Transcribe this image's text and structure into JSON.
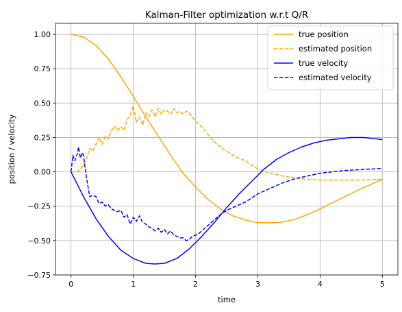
{
  "chart_data": {
    "type": "line",
    "title": "Kalman-Filter optimization w.r.t Q/R",
    "xlabel": "time",
    "ylabel": "position / velocity",
    "xlim": [
      -0.25,
      5.25
    ],
    "ylim": [
      -0.75,
      1.08
    ],
    "xticks": [
      0,
      1,
      2,
      3,
      4,
      5
    ],
    "yticks": [
      -0.75,
      -0.5,
      -0.25,
      0.0,
      0.25,
      0.5,
      0.75,
      1.0
    ],
    "xtick_labels": [
      "0",
      "1",
      "2",
      "3",
      "4",
      "5"
    ],
    "ytick_labels": [
      "−0.75",
      "−0.50",
      "−0.25",
      "0.00",
      "0.25",
      "0.50",
      "0.75",
      "1.00"
    ],
    "grid": true,
    "legend_position": "top-right",
    "series": [
      {
        "name": "true position",
        "color": "#ffa500",
        "dash": "solid",
        "x": [
          0,
          0.2,
          0.4,
          0.6,
          0.8,
          1.0,
          1.2,
          1.4,
          1.6,
          1.8,
          2.0,
          2.2,
          2.4,
          2.6,
          2.8,
          3.0,
          3.2,
          3.3,
          3.4,
          3.6,
          3.8,
          4.0,
          4.2,
          4.4,
          4.6,
          4.8,
          5.0
        ],
        "y": [
          1.0,
          0.98,
          0.92,
          0.82,
          0.69,
          0.55,
          0.4,
          0.26,
          0.12,
          -0.01,
          -0.11,
          -0.2,
          -0.27,
          -0.32,
          -0.35,
          -0.37,
          -0.37,
          -0.37,
          -0.365,
          -0.345,
          -0.31,
          -0.27,
          -0.225,
          -0.18,
          -0.135,
          -0.095,
          -0.055
        ]
      },
      {
        "name": "estimated position",
        "color": "#ffa500",
        "dash": "dashed",
        "x": [
          0,
          0.1,
          0.15,
          0.2,
          0.25,
          0.3,
          0.35,
          0.4,
          0.45,
          0.5,
          0.55,
          0.6,
          0.65,
          0.7,
          0.75,
          0.8,
          0.85,
          0.9,
          0.95,
          1.0,
          1.05,
          1.1,
          1.15,
          1.2,
          1.25,
          1.3,
          1.35,
          1.4,
          1.45,
          1.5,
          1.55,
          1.6,
          1.65,
          1.7,
          1.75,
          1.8,
          1.85,
          1.9,
          1.95,
          2.0,
          2.1,
          2.2,
          2.3,
          2.4,
          2.5,
          2.6,
          2.7,
          2.8,
          2.9,
          3.0,
          3.2,
          3.4,
          3.6,
          3.8,
          4.0,
          4.2,
          4.4,
          4.6,
          4.8,
          5.0
        ],
        "y": [
          0.0,
          0.0,
          0.02,
          0.05,
          0.1,
          0.17,
          0.15,
          0.2,
          0.25,
          0.2,
          0.26,
          0.24,
          0.3,
          0.33,
          0.3,
          0.33,
          0.3,
          0.38,
          0.41,
          0.48,
          0.36,
          0.4,
          0.34,
          0.43,
          0.4,
          0.45,
          0.4,
          0.46,
          0.42,
          0.45,
          0.44,
          0.42,
          0.46,
          0.43,
          0.44,
          0.42,
          0.44,
          0.43,
          0.4,
          0.37,
          0.33,
          0.27,
          0.22,
          0.18,
          0.15,
          0.12,
          0.1,
          0.08,
          0.05,
          0.02,
          -0.01,
          -0.03,
          -0.045,
          -0.055,
          -0.06,
          -0.06,
          -0.06,
          -0.06,
          -0.058,
          -0.055
        ]
      },
      {
        "name": "true velocity",
        "color": "#0000ff",
        "dash": "solid",
        "x": [
          0,
          0.2,
          0.4,
          0.6,
          0.8,
          1.0,
          1.2,
          1.35,
          1.5,
          1.7,
          1.9,
          2.1,
          2.3,
          2.5,
          2.7,
          2.9,
          3.1,
          3.3,
          3.5,
          3.7,
          3.9,
          4.1,
          4.3,
          4.5,
          4.6,
          4.7,
          4.9,
          5.0
        ],
        "y": [
          0.0,
          -0.18,
          -0.34,
          -0.47,
          -0.57,
          -0.63,
          -0.665,
          -0.67,
          -0.665,
          -0.63,
          -0.56,
          -0.47,
          -0.37,
          -0.26,
          -0.16,
          -0.07,
          0.02,
          0.09,
          0.14,
          0.18,
          0.21,
          0.23,
          0.24,
          0.25,
          0.25,
          0.25,
          0.24,
          0.235
        ]
      },
      {
        "name": "estimated velocity",
        "color": "#0000ff",
        "dash": "dashed",
        "x": [
          0,
          0.03,
          0.06,
          0.1,
          0.12,
          0.15,
          0.18,
          0.2,
          0.22,
          0.25,
          0.3,
          0.35,
          0.4,
          0.45,
          0.5,
          0.55,
          0.6,
          0.65,
          0.7,
          0.75,
          0.8,
          0.85,
          0.9,
          0.95,
          1.0,
          1.05,
          1.1,
          1.15,
          1.2,
          1.25,
          1.3,
          1.35,
          1.4,
          1.45,
          1.5,
          1.55,
          1.6,
          1.65,
          1.7,
          1.75,
          1.8,
          1.85,
          1.9,
          1.95,
          2.0,
          2.05,
          2.1,
          2.2,
          2.3,
          2.4,
          2.5,
          2.6,
          2.7,
          2.8,
          2.9,
          3.0,
          3.2,
          3.4,
          3.6,
          3.8,
          4.0,
          4.2,
          4.4,
          4.6,
          4.8,
          5.0
        ],
        "y": [
          0.0,
          0.12,
          0.08,
          0.13,
          0.18,
          0.1,
          0.14,
          0.12,
          0.05,
          -0.05,
          -0.18,
          -0.17,
          -0.18,
          -0.23,
          -0.22,
          -0.25,
          -0.24,
          -0.27,
          -0.28,
          -0.29,
          -0.28,
          -0.33,
          -0.31,
          -0.38,
          -0.33,
          -0.36,
          -0.32,
          -0.37,
          -0.38,
          -0.4,
          -0.41,
          -0.43,
          -0.41,
          -0.44,
          -0.42,
          -0.45,
          -0.43,
          -0.46,
          -0.47,
          -0.48,
          -0.48,
          -0.5,
          -0.49,
          -0.47,
          -0.46,
          -0.45,
          -0.43,
          -0.39,
          -0.35,
          -0.31,
          -0.28,
          -0.26,
          -0.24,
          -0.22,
          -0.19,
          -0.16,
          -0.12,
          -0.08,
          -0.05,
          -0.03,
          -0.01,
          0.0,
          0.01,
          0.015,
          0.02,
          0.025
        ]
      }
    ]
  }
}
